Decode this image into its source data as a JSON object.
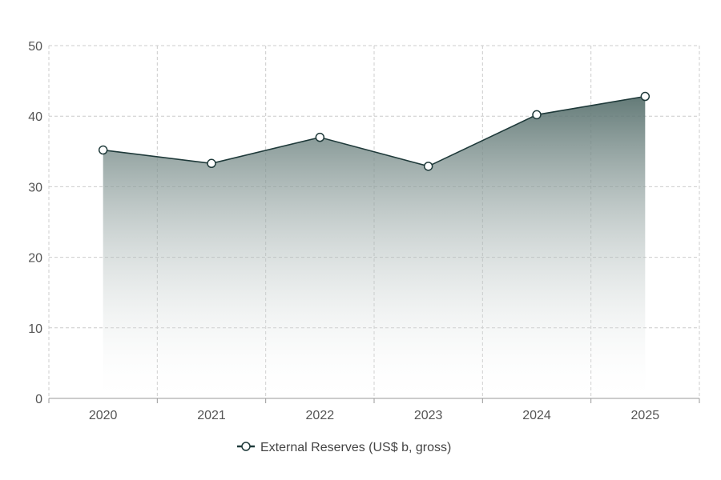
{
  "chart_data": {
    "type": "area",
    "x": [
      "2020",
      "2021",
      "2022",
      "2023",
      "2024",
      "2025"
    ],
    "series": [
      {
        "name": "External Reserves (US$ b, gross)",
        "values": [
          35.2,
          33.3,
          37.0,
          32.9,
          40.2,
          42.8
        ]
      }
    ],
    "ylim": [
      0,
      50
    ],
    "yticks": [
      0,
      10,
      20,
      30,
      40,
      50
    ],
    "grid": true,
    "grid_style": "dashed",
    "legend_position": "bottom-center",
    "colors": {
      "line": "#1f3a3a",
      "fill_top": "#5b7370",
      "fill_bottom": "#ffffff",
      "marker_fill": "#ffffff",
      "grid": "#cccccc",
      "axis": "#999999"
    }
  }
}
